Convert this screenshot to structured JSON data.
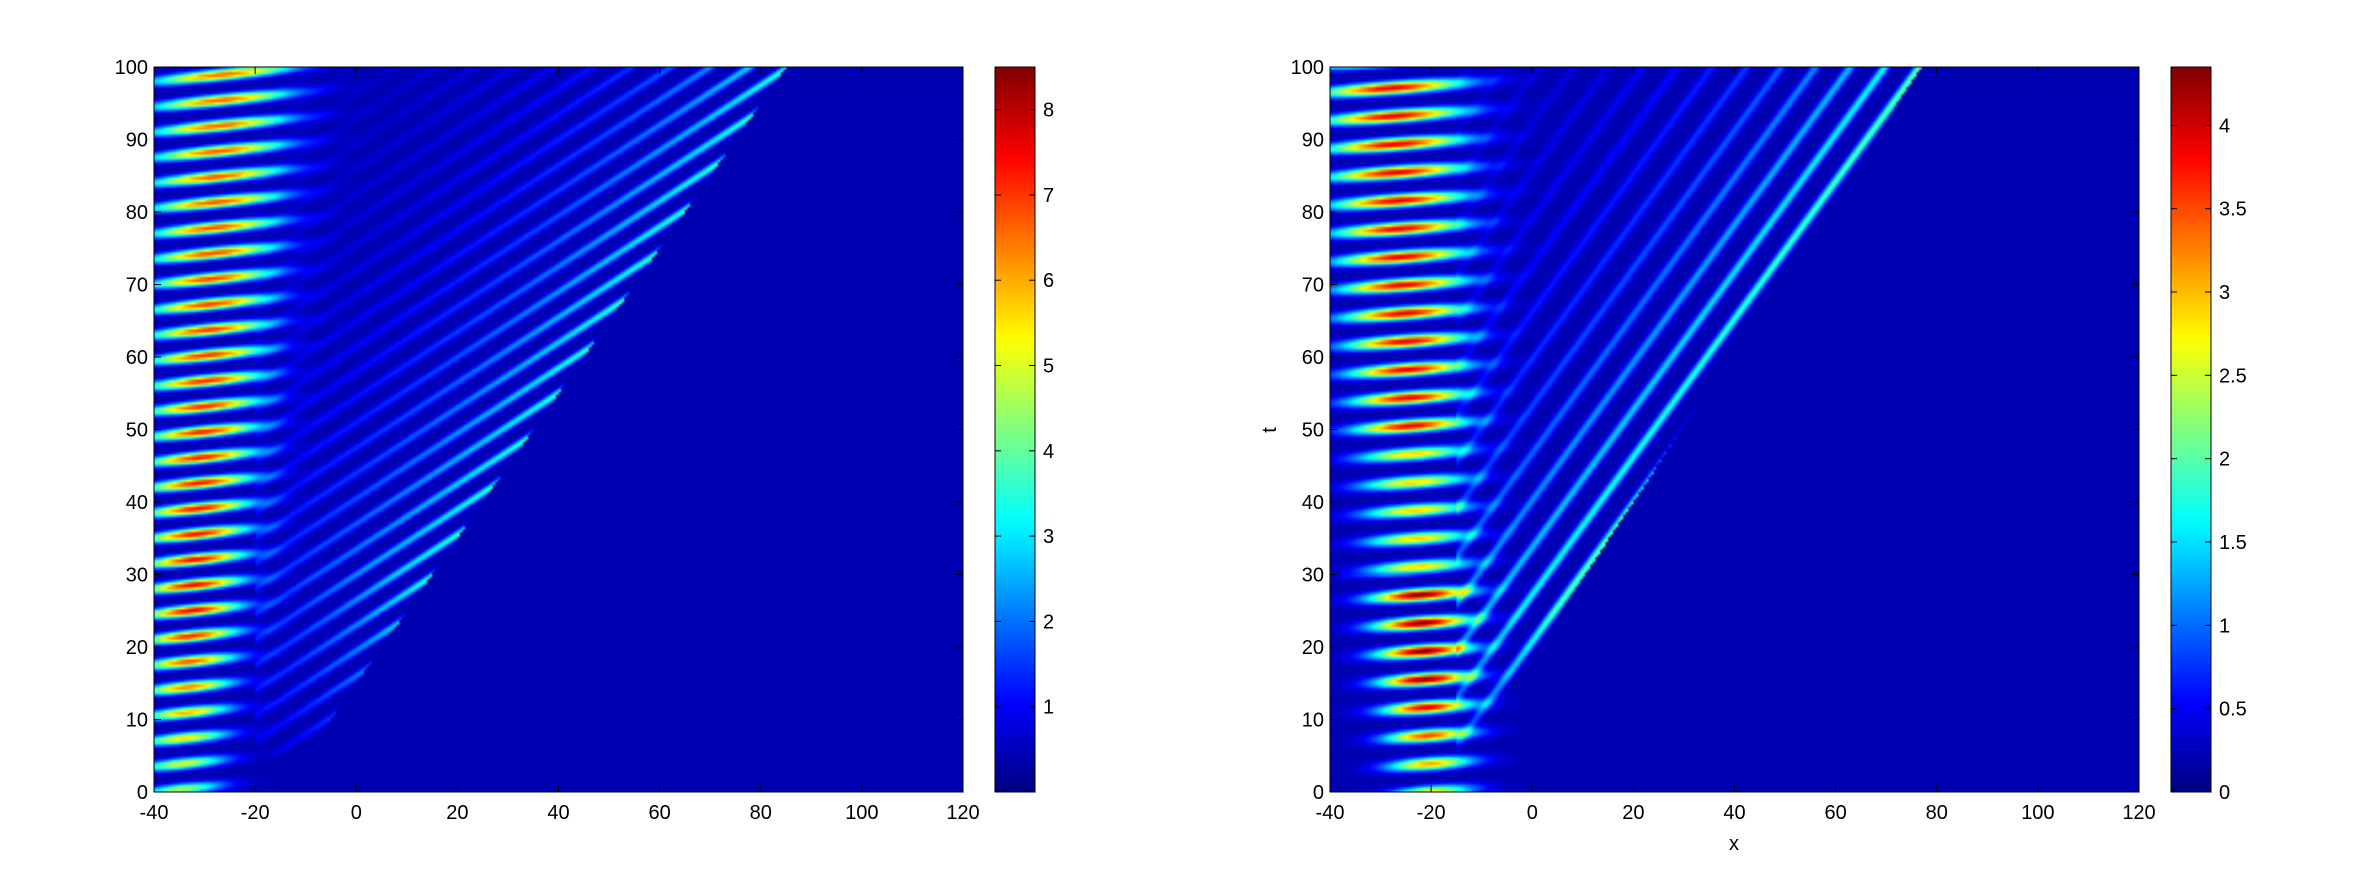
{
  "chart_data": [
    {
      "type": "heatmap",
      "title": "",
      "xlabel": "",
      "ylabel": "",
      "xlim": [
        -40,
        120
      ],
      "ylim": [
        0,
        100
      ],
      "x_ticks": [
        "-40",
        "-20",
        "0",
        "20",
        "40",
        "60",
        "80",
        "100",
        "120"
      ],
      "y_ticks": [
        "0",
        "10",
        "20",
        "30",
        "40",
        "50",
        "60",
        "70",
        "80",
        "90",
        "100"
      ],
      "x_tick_values": [
        -40,
        -20,
        0,
        20,
        40,
        60,
        80,
        100,
        120
      ],
      "y_tick_values": [
        0,
        10,
        20,
        30,
        40,
        50,
        60,
        70,
        80,
        90,
        100
      ],
      "colormap": "jet",
      "colorbar": {
        "range": [
          0,
          8.5
        ],
        "ticks": [
          "1",
          "2",
          "3",
          "4",
          "5",
          "6",
          "7",
          "8"
        ],
        "tick_values": [
          1,
          2,
          3,
          4,
          5,
          6,
          7,
          8
        ]
      },
      "features": {
        "source_x": -25,
        "front_speed": 1.0,
        "peak_value": 8.5,
        "stripe_period_t": 3.5
      },
      "grid": false
    },
    {
      "type": "heatmap",
      "title": "",
      "xlabel": "x",
      "ylabel": "t",
      "xlim": [
        -40,
        120
      ],
      "ylim": [
        0,
        100
      ],
      "x_ticks": [
        "-40",
        "-20",
        "0",
        "20",
        "40",
        "60",
        "80",
        "100",
        "120"
      ],
      "y_ticks": [
        "0",
        "10",
        "20",
        "30",
        "40",
        "50",
        "60",
        "70",
        "80",
        "90",
        "100"
      ],
      "x_tick_values": [
        -40,
        -20,
        0,
        20,
        40,
        60,
        80,
        100,
        120
      ],
      "y_tick_values": [
        0,
        10,
        20,
        30,
        40,
        50,
        60,
        70,
        80,
        90,
        100
      ],
      "colormap": "jet",
      "colorbar": {
        "range": [
          0,
          4.35
        ],
        "ticks": [
          "0",
          "0.5",
          "1",
          "1.5",
          "2",
          "2.5",
          "3",
          "3.5",
          "4"
        ],
        "tick_values": [
          0,
          0.5,
          1,
          1.5,
          2,
          2.5,
          3,
          3.5,
          4
        ]
      },
      "features": {
        "source_x": -20,
        "front_speed": 0.95,
        "peak_value": 4.35,
        "stripe_period_t": 3.9
      },
      "grid": false
    }
  ]
}
